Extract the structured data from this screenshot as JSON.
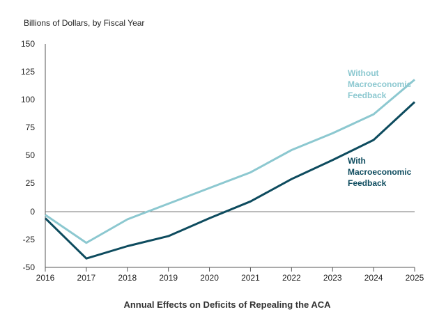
{
  "chart_data": {
    "type": "line",
    "title": "",
    "unit_label": "Billions of Dollars, by Fiscal Year",
    "xlabel": "Annual Effects on Deficits of Repealing the ACA",
    "ylabel": "",
    "x": [
      "2016",
      "2017",
      "2018",
      "2019",
      "2020",
      "2021",
      "2022",
      "2023",
      "2024",
      "2025"
    ],
    "yticks": [
      "150",
      "125",
      "100",
      "75",
      "50",
      "25",
      "0",
      "-25",
      "-50"
    ],
    "ylim": [
      -50,
      150
    ],
    "grid": false,
    "series": [
      {
        "name_lines": [
          "Without",
          "Macroeconomic",
          "Feedback"
        ],
        "color": "#8cc8d0",
        "values": [
          -3,
          -28,
          -7,
          7,
          21,
          35,
          55,
          70,
          87,
          118
        ]
      },
      {
        "name_lines": [
          "With",
          "Macroeconomic",
          "Feedback"
        ],
        "color": "#0d4b5e",
        "values": [
          -6,
          -42,
          -31,
          -22,
          -6,
          9,
          29,
          46,
          64,
          98
        ]
      }
    ]
  }
}
